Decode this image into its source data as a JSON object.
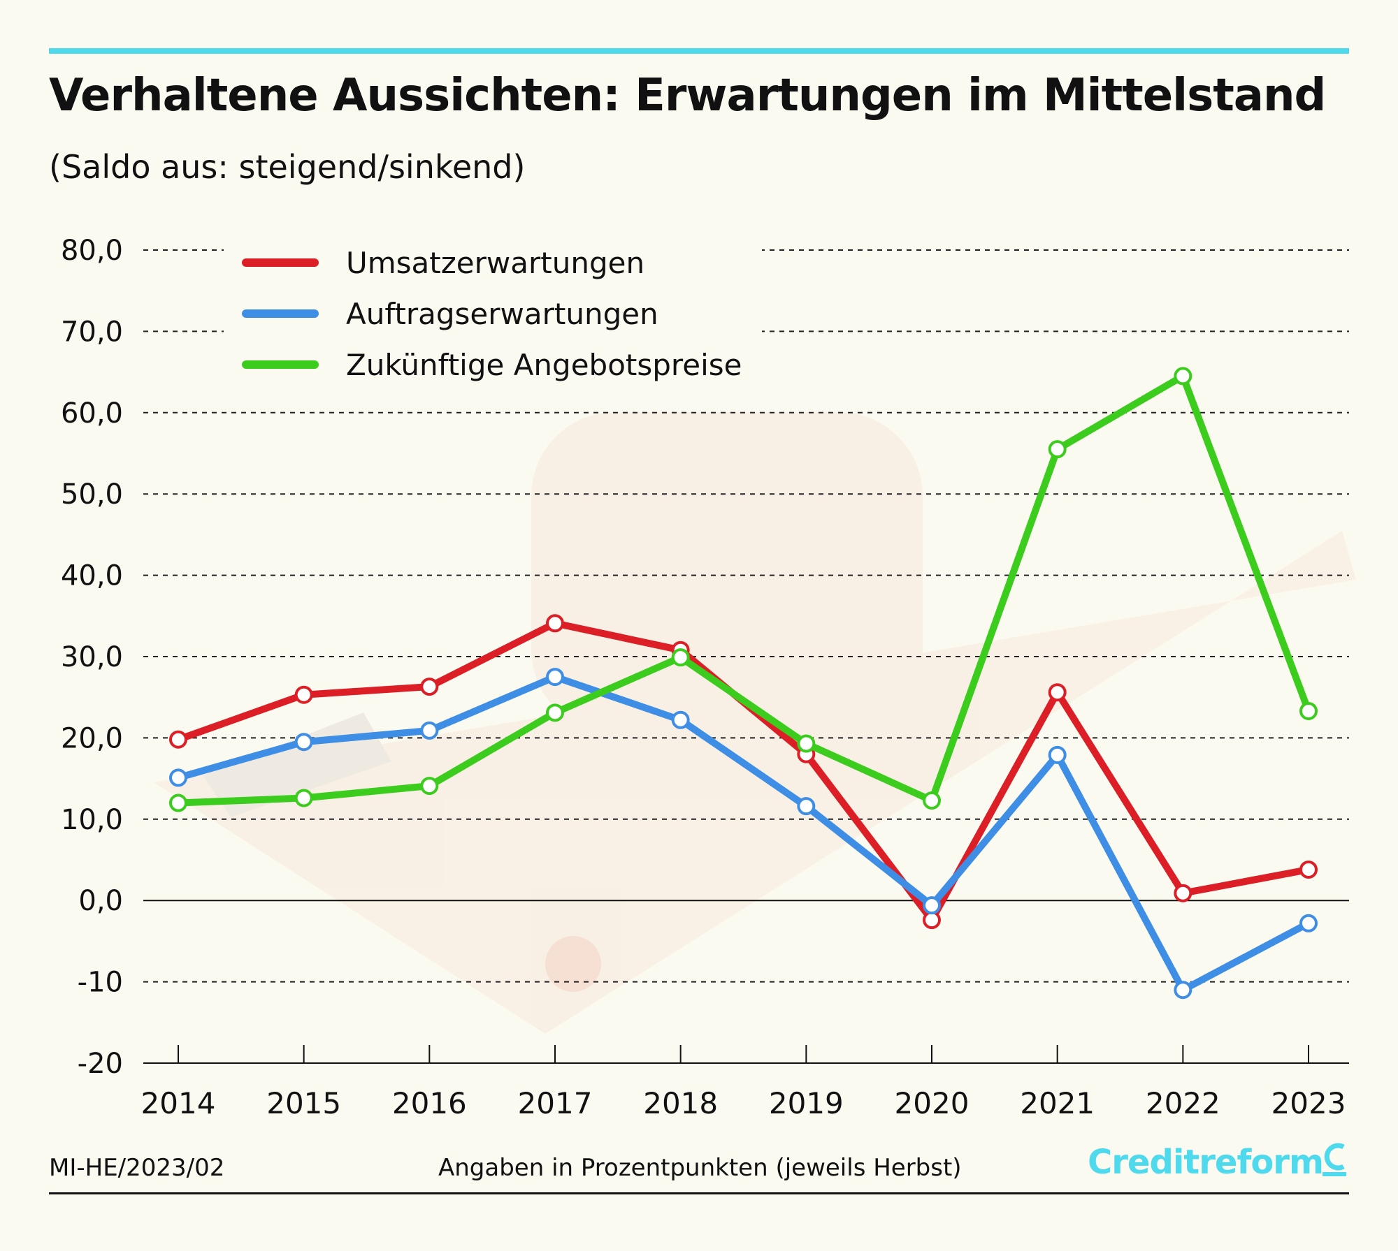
{
  "header": {
    "title": "Verhaltene Aussichten: Erwartungen im Mittelstand",
    "subtitle": "(Saldo aus: steigend/sinkend)",
    "accent_color": "#4fd9ec"
  },
  "footer": {
    "code": "MI-HE/2023/02",
    "note": "Angaben in Prozentpunkten (jeweils Herbst)",
    "brand": "Creditreform",
    "brand_color": "#4fd9ec"
  },
  "chart_data": {
    "type": "line",
    "title": "Verhaltene Aussichten: Erwartungen im Mittelstand",
    "subtitle": "(Saldo aus: steigend/sinkend)",
    "xlabel": "",
    "ylabel": "",
    "categories": [
      "2014",
      "2015",
      "2016",
      "2017",
      "2018",
      "2019",
      "2020",
      "2021",
      "2022",
      "2023"
    ],
    "ylim": [
      -20,
      80
    ],
    "yticks": [
      80,
      70,
      60,
      50,
      40,
      30,
      20,
      10,
      0,
      -10,
      -20
    ],
    "ytick_labels": [
      "80,0",
      "70,0",
      "60,0",
      "50,0",
      "40,0",
      "30,0",
      "20,0",
      "10,0",
      "0,0",
      "-10",
      "-20"
    ],
    "grid": true,
    "legend_position": "top-left",
    "series": [
      {
        "name": "Umsatzerwartungen",
        "color": "#dc1f26",
        "values": [
          19.8,
          25.3,
          26.3,
          34.1,
          30.8,
          18.0,
          -2.4,
          25.6,
          0.9,
          3.8
        ]
      },
      {
        "name": "Auftragserwartungen",
        "color": "#3f8ee6",
        "values": [
          15.1,
          19.5,
          20.9,
          27.5,
          22.2,
          11.6,
          -0.6,
          17.9,
          -11.0,
          -2.8
        ]
      },
      {
        "name": "Zukünftige Angebotspreise",
        "color": "#3ccc1d",
        "values": [
          12.0,
          12.6,
          14.1,
          23.1,
          29.9,
          19.3,
          12.3,
          55.5,
          64.5,
          23.3
        ]
      }
    ]
  }
}
